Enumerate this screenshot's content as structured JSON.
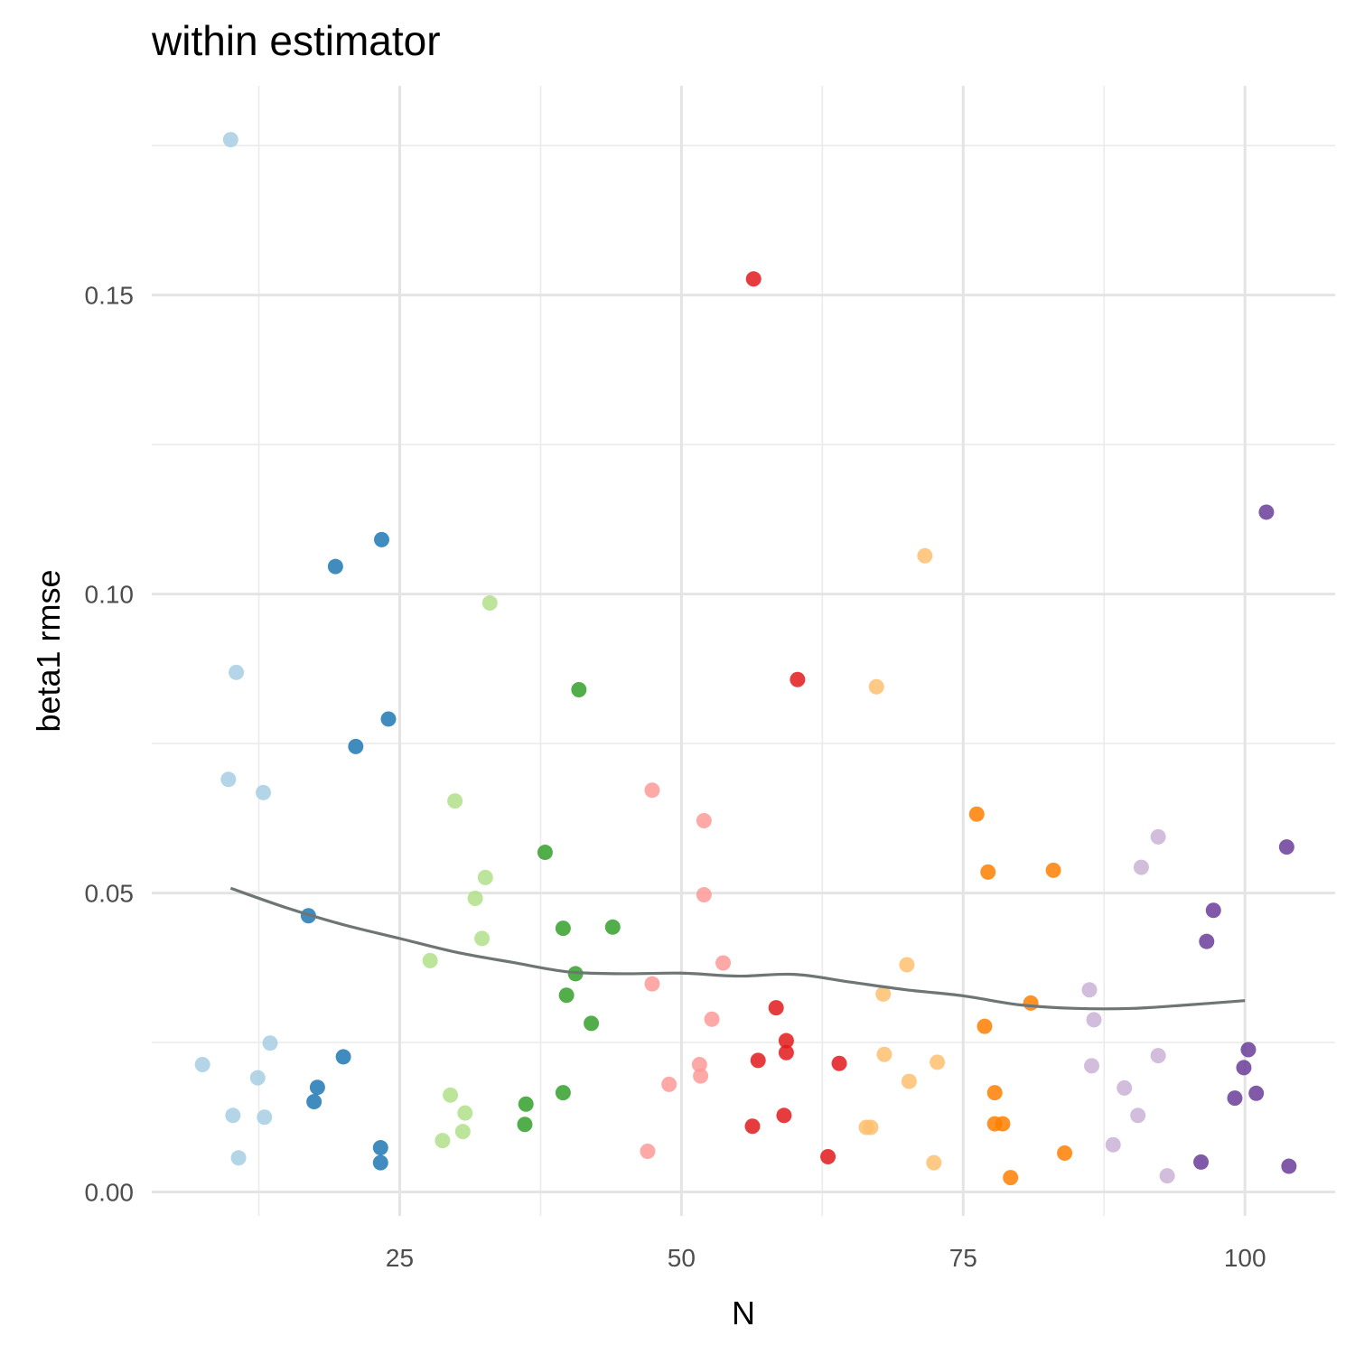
{
  "chart_data": {
    "type": "scatter",
    "title": "within estimator",
    "xlabel": "N",
    "ylabel": "beta1 rmse",
    "xlim": [
      3,
      108
    ],
    "ylim": [
      -0.004,
      0.185
    ],
    "x_ticks": [
      25,
      50,
      75,
      100
    ],
    "x_tick_labels": [
      "25",
      "50",
      "75",
      "100"
    ],
    "y_ticks": [
      0.0,
      0.05,
      0.1,
      0.15
    ],
    "y_tick_labels": [
      "0.00",
      "0.05",
      "0.10",
      "0.15"
    ],
    "grid": true,
    "legend": "none",
    "series": [
      {
        "color": "#a6cee3",
        "points": [
          [
            7.5,
            0.0213
          ],
          [
            9.8,
            0.069
          ],
          [
            10.0,
            0.176
          ],
          [
            10.2,
            0.0128
          ],
          [
            10.5,
            0.0869
          ],
          [
            10.7,
            0.0057
          ],
          [
            12.4,
            0.0191
          ],
          [
            12.9,
            0.0668
          ],
          [
            13.0,
            0.0125
          ],
          [
            13.5,
            0.0249
          ]
        ]
      },
      {
        "color": "#1f78b4",
        "points": [
          [
            16.9,
            0.0462
          ],
          [
            17.4,
            0.0151
          ],
          [
            17.7,
            0.0175
          ],
          [
            19.3,
            0.1046
          ],
          [
            20.0,
            0.0226
          ],
          [
            21.1,
            0.0745
          ],
          [
            23.3,
            0.0074
          ],
          [
            23.3,
            0.0049
          ],
          [
            23.4,
            0.1091
          ],
          [
            24.0,
            0.0791
          ]
        ]
      },
      {
        "color": "#b2df8a",
        "points": [
          [
            27.7,
            0.0387
          ],
          [
            28.8,
            0.0086
          ],
          [
            29.5,
            0.0162
          ],
          [
            29.9,
            0.0654
          ],
          [
            30.6,
            0.0101
          ],
          [
            30.8,
            0.0132
          ],
          [
            31.7,
            0.0491
          ],
          [
            32.3,
            0.0424
          ],
          [
            32.6,
            0.0526
          ],
          [
            33.0,
            0.0985
          ]
        ]
      },
      {
        "color": "#33a02c",
        "points": [
          [
            36.1,
            0.0113
          ],
          [
            36.2,
            0.0147
          ],
          [
            37.9,
            0.0568
          ],
          [
            39.5,
            0.0166
          ],
          [
            39.5,
            0.0441
          ],
          [
            39.8,
            0.0329
          ],
          [
            40.6,
            0.0365
          ],
          [
            40.9,
            0.084
          ],
          [
            42.0,
            0.0282
          ],
          [
            43.9,
            0.0443
          ]
        ]
      },
      {
        "color": "#fb9a99",
        "points": [
          [
            47.0,
            0.0068
          ],
          [
            47.4,
            0.0348
          ],
          [
            47.4,
            0.0672
          ],
          [
            48.9,
            0.018
          ],
          [
            51.6,
            0.0213
          ],
          [
            51.7,
            0.0194
          ],
          [
            52.0,
            0.0621
          ],
          [
            52.0,
            0.0497
          ],
          [
            52.7,
            0.0289
          ],
          [
            53.7,
            0.0383
          ]
        ]
      },
      {
        "color": "#e31a1c",
        "points": [
          [
            56.3,
            0.011
          ],
          [
            56.4,
            0.1527
          ],
          [
            56.8,
            0.022
          ],
          [
            58.4,
            0.0308
          ],
          [
            59.1,
            0.0128
          ],
          [
            59.3,
            0.0233
          ],
          [
            59.3,
            0.0253
          ],
          [
            60.3,
            0.0857
          ],
          [
            63.0,
            0.0059
          ],
          [
            64.0,
            0.0215
          ]
        ]
      },
      {
        "color": "#fdbf6f",
        "points": [
          [
            66.4,
            0.0108
          ],
          [
            66.8,
            0.0108
          ],
          [
            67.3,
            0.0845
          ],
          [
            67.9,
            0.0331
          ],
          [
            68.0,
            0.023
          ],
          [
            70.0,
            0.038
          ],
          [
            70.2,
            0.0185
          ],
          [
            71.6,
            0.1064
          ],
          [
            72.4,
            0.0049
          ],
          [
            72.7,
            0.0217
          ]
        ]
      },
      {
        "color": "#ff7f00",
        "points": [
          [
            76.2,
            0.0632
          ],
          [
            76.9,
            0.0277
          ],
          [
            77.2,
            0.0535
          ],
          [
            77.8,
            0.0166
          ],
          [
            77.8,
            0.0114
          ],
          [
            78.5,
            0.0114
          ],
          [
            79.2,
            0.0024
          ],
          [
            81.0,
            0.0316
          ],
          [
            83.0,
            0.0538
          ],
          [
            84.0,
            0.0065
          ]
        ]
      },
      {
        "color": "#cab2d6",
        "points": [
          [
            86.2,
            0.0338
          ],
          [
            86.4,
            0.0211
          ],
          [
            86.6,
            0.0288
          ],
          [
            88.3,
            0.0079
          ],
          [
            89.3,
            0.0174
          ],
          [
            90.5,
            0.0128
          ],
          [
            90.8,
            0.0543
          ],
          [
            92.3,
            0.0228
          ],
          [
            92.3,
            0.0594
          ],
          [
            93.1,
            0.0027
          ]
        ]
      },
      {
        "color": "#6a3d9a",
        "points": [
          [
            96.1,
            0.005
          ],
          [
            96.6,
            0.0419
          ],
          [
            97.2,
            0.0471
          ],
          [
            99.1,
            0.0157
          ],
          [
            99.9,
            0.0208
          ],
          [
            100.3,
            0.0238
          ],
          [
            101.0,
            0.0165
          ],
          [
            101.9,
            0.1137
          ],
          [
            103.7,
            0.0577
          ],
          [
            103.9,
            0.0043
          ]
        ]
      }
    ],
    "smooth": {
      "color": "#6e7575",
      "points": [
        [
          10,
          0.0508
        ],
        [
          15,
          0.0475
        ],
        [
          20,
          0.0447
        ],
        [
          25,
          0.0424
        ],
        [
          30,
          0.0401
        ],
        [
          35,
          0.0384
        ],
        [
          40,
          0.0368
        ],
        [
          45,
          0.0365
        ],
        [
          50,
          0.0366
        ],
        [
          55,
          0.0361
        ],
        [
          60,
          0.0364
        ],
        [
          65,
          0.0351
        ],
        [
          70,
          0.0338
        ],
        [
          75,
          0.0328
        ],
        [
          80,
          0.0313
        ],
        [
          85,
          0.0307
        ],
        [
          90,
          0.0307
        ],
        [
          95,
          0.0313
        ],
        [
          100,
          0.032
        ]
      ]
    }
  }
}
